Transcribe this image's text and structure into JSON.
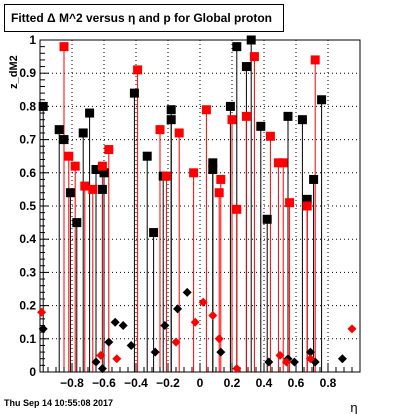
{
  "chart_data": {
    "type": "scatter",
    "title": "Fitted Δ M^2 versus η and p for Global proton",
    "xlabel": "η",
    "ylabel": "z_dM2",
    "xlim": [
      -1.0,
      1.0
    ],
    "ylim": [
      0.0,
      1.0
    ],
    "x_ticks": [
      -0.8,
      -0.6,
      -0.4,
      -0.2,
      0,
      0.2,
      0.4,
      0.6,
      0.8
    ],
    "x_tick_labels": [
      "−0.8",
      "−0.6",
      "−0.4",
      "−0.2",
      "0",
      "0.2",
      "0.4",
      "0.6",
      "0.8"
    ],
    "y_ticks": [
      0,
      0.1,
      0.2,
      0.3,
      0.4,
      0.5,
      0.6,
      0.7,
      0.8,
      0.9,
      1
    ],
    "y_tick_labels": [
      "0",
      "0.1",
      "0.2",
      "0.3",
      "0.4",
      "0.5",
      "0.6",
      "0.7",
      "0.8",
      "0.9",
      "1"
    ],
    "grid": true,
    "footer": "Thu Sep 14 10:55:08 2017",
    "series": [
      {
        "marker": "square",
        "color": "#000000",
        "points": [
          [
            -0.98,
            0.8
          ],
          [
            -0.88,
            0.73
          ],
          [
            -0.85,
            0.7
          ],
          [
            -0.81,
            0.54
          ],
          [
            -0.77,
            0.45
          ],
          [
            -0.73,
            0.72
          ],
          [
            -0.69,
            0.78
          ],
          [
            -0.65,
            0.61
          ],
          [
            -0.61,
            0.55
          ],
          [
            -0.6,
            0.6
          ],
          [
            -0.41,
            0.84
          ],
          [
            -0.33,
            0.65
          ],
          [
            -0.29,
            0.42
          ],
          [
            -0.23,
            0.59
          ],
          [
            -0.18,
            0.79
          ],
          [
            -0.18,
            0.76
          ],
          [
            0.08,
            0.63
          ],
          [
            0.08,
            0.61
          ],
          [
            0.19,
            0.8
          ],
          [
            0.23,
            0.98
          ],
          [
            0.29,
            0.92
          ],
          [
            0.32,
            1.0
          ],
          [
            0.38,
            0.74
          ],
          [
            0.42,
            0.46
          ],
          [
            0.55,
            0.77
          ],
          [
            0.64,
            0.76
          ],
          [
            0.67,
            0.52
          ],
          [
            0.71,
            0.58
          ],
          [
            0.76,
            0.82
          ]
        ]
      },
      {
        "marker": "square",
        "color": "#ff0000",
        "points": [
          [
            -0.85,
            0.98
          ],
          [
            -0.82,
            0.65
          ],
          [
            -0.78,
            0.62
          ],
          [
            -0.72,
            0.56
          ],
          [
            -0.67,
            0.55
          ],
          [
            -0.61,
            0.62
          ],
          [
            -0.57,
            0.67
          ],
          [
            -0.39,
            0.91
          ],
          [
            -0.25,
            0.73
          ],
          [
            -0.21,
            0.59
          ],
          [
            -0.13,
            0.72
          ],
          [
            -0.04,
            0.6
          ],
          [
            0.04,
            0.79
          ],
          [
            0.12,
            0.54
          ],
          [
            0.13,
            0.58
          ],
          [
            0.2,
            0.76
          ],
          [
            0.23,
            0.49
          ],
          [
            0.29,
            0.77
          ],
          [
            0.34,
            0.95
          ],
          [
            0.44,
            0.71
          ],
          [
            0.49,
            0.63
          ],
          [
            0.52,
            0.63
          ],
          [
            0.56,
            0.51
          ],
          [
            0.67,
            0.5
          ],
          [
            0.72,
            0.94
          ]
        ]
      },
      {
        "marker": "diamond",
        "color": "#000000",
        "points": [
          [
            -0.98,
            0.13
          ],
          [
            -0.65,
            0.03
          ],
          [
            -0.61,
            0.01
          ],
          [
            -0.57,
            0.09
          ],
          [
            -0.53,
            0.15
          ],
          [
            -0.48,
            0.14
          ],
          [
            -0.43,
            0.08
          ],
          [
            -0.28,
            0.06
          ],
          [
            -0.22,
            0.14
          ],
          [
            -0.14,
            0.19
          ],
          [
            -0.08,
            0.24
          ],
          [
            0.13,
            0.06
          ],
          [
            0.43,
            0.03
          ],
          [
            0.55,
            0.04
          ],
          [
            0.59,
            0.03
          ],
          [
            0.69,
            0.06
          ],
          [
            0.72,
            0.03
          ],
          [
            0.89,
            0.04
          ]
        ]
      },
      {
        "marker": "diamond",
        "color": "#ff0000",
        "points": [
          [
            -0.99,
            0.18
          ],
          [
            -0.62,
            0.05
          ],
          [
            -0.52,
            0.04
          ],
          [
            -0.15,
            0.09
          ],
          [
            -0.03,
            0.15
          ],
          [
            0.02,
            0.21
          ],
          [
            0.08,
            0.17
          ],
          [
            0.12,
            0.1
          ],
          [
            0.23,
            0.01
          ],
          [
            0.5,
            0.05
          ],
          [
            0.54,
            0.03
          ],
          [
            0.69,
            0.04
          ],
          [
            0.95,
            0.13
          ]
        ]
      }
    ]
  }
}
